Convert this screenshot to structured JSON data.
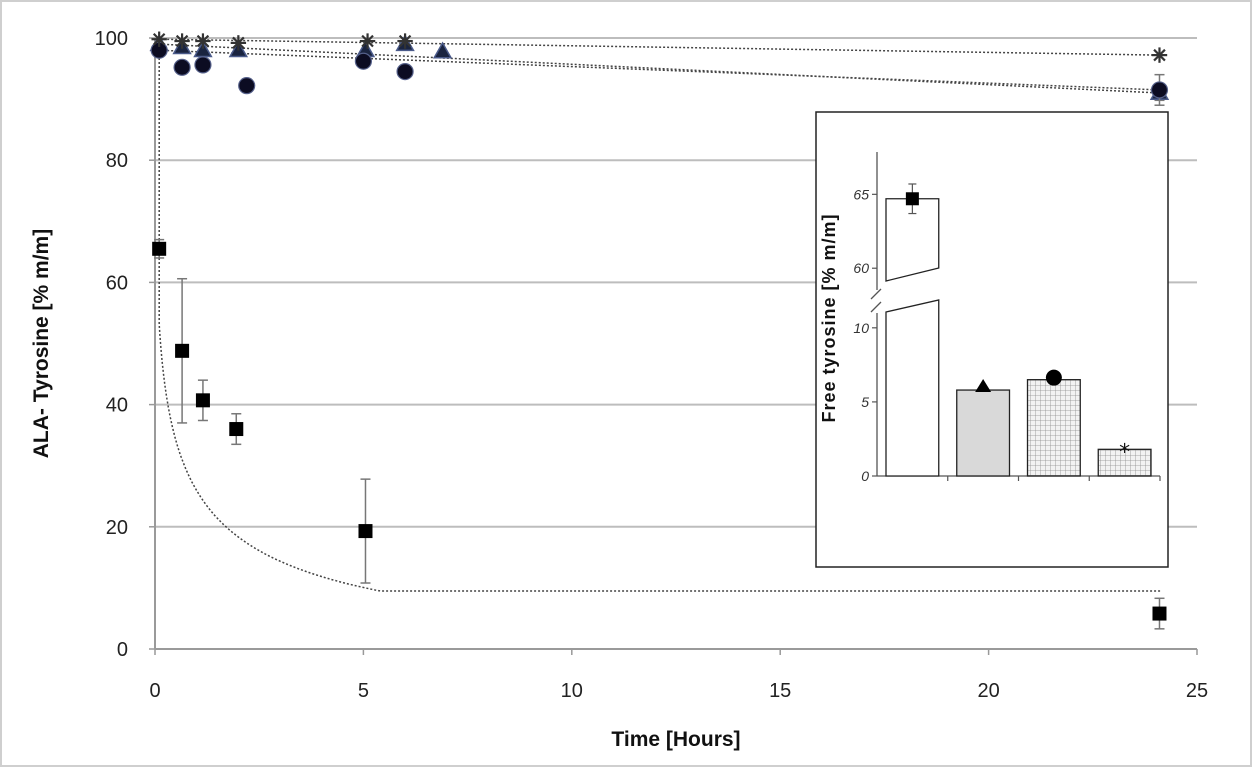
{
  "chart_data": [
    {
      "type": "scatter",
      "title": "",
      "xlabel": "Time [Hours]",
      "ylabel": "ALA- Tyrosine [% m/m]",
      "xlim": [
        0,
        25
      ],
      "ylim": [
        0,
        100
      ],
      "xticks": [
        0,
        5,
        10,
        15,
        20,
        25
      ],
      "yticks": [
        0,
        20,
        40,
        60,
        80,
        100
      ],
      "grid": "horizontal",
      "series": [
        {
          "marker": "square",
          "x": [
            0.1,
            0.65,
            1.15,
            1.95,
            5.05,
            24.1
          ],
          "y": [
            65.5,
            48.8,
            40.7,
            36.0,
            19.3,
            5.8
          ],
          "err": [
            1.5,
            11.8,
            3.3,
            2.5,
            8.5,
            2.5
          ],
          "trend": "decay"
        },
        {
          "marker": "triangle",
          "x": [
            0.1,
            0.65,
            1.15,
            2.0,
            5.05,
            6.0,
            6.9,
            24.1
          ],
          "y": [
            99.0,
            98.5,
            98.0,
            98.0,
            98.0,
            99.0,
            97.8,
            91.0
          ],
          "err": [
            0.3,
            0.3,
            0.3,
            0.3,
            0.3,
            0.3,
            0.3,
            1.2
          ],
          "trend": "flat"
        },
        {
          "marker": "circle",
          "x": [
            0.1,
            0.65,
            1.15,
            2.2,
            5.0,
            6.0,
            24.1
          ],
          "y": [
            98.0,
            95.2,
            95.6,
            92.2,
            96.2,
            94.5,
            91.5
          ],
          "err": [
            0.3,
            0.3,
            0.3,
            0.3,
            0.3,
            0.3,
            2.5
          ],
          "trend": "flat"
        },
        {
          "marker": "star",
          "x": [
            0.1,
            0.65,
            1.15,
            2.0,
            5.1,
            6.0,
            24.1
          ],
          "y": [
            99.8,
            99.5,
            99.5,
            99.2,
            99.5,
            99.5,
            97.2
          ],
          "err": [
            0.2,
            0.2,
            0.2,
            0.2,
            0.2,
            0.2,
            0.5
          ],
          "trend": "flat"
        }
      ]
    },
    {
      "type": "bar",
      "title": "",
      "xlabel": "",
      "ylabel": "Free tyrosine [% m/m]",
      "axis_break": [
        11,
        59
      ],
      "yticks": [
        0,
        5,
        10,
        60,
        65
      ],
      "bars": [
        {
          "marker": "square",
          "value": 64.7,
          "err": 1.0,
          "fill": "white"
        },
        {
          "marker": "triangle",
          "value": 5.8,
          "err": 0,
          "fill": "lightgray"
        },
        {
          "marker": "circle",
          "value": 6.5,
          "err": 0,
          "fill": "grid"
        },
        {
          "marker": "star",
          "value": 1.8,
          "err": 0,
          "fill": "grid"
        }
      ]
    }
  ]
}
